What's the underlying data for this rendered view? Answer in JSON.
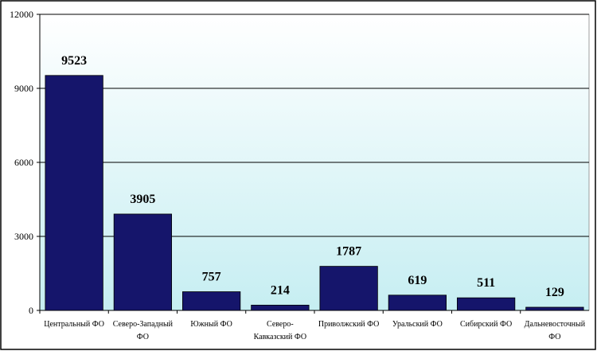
{
  "chart_data": {
    "type": "bar",
    "categories": [
      "Центральный ФО",
      "Северо-Западный ФО",
      "Южный ФО",
      "Северо-Кавказский ФО",
      "Приволжский ФО",
      "Уральский ФО",
      "Сибирский ФО",
      "Дальневосточный ФО"
    ],
    "values": [
      9523,
      3905,
      757,
      214,
      1787,
      619,
      511,
      129
    ],
    "color": "#15156b",
    "ylim": [
      0,
      12000
    ],
    "yticks": [
      0,
      3000,
      6000,
      9000,
      12000
    ],
    "grid": true
  }
}
